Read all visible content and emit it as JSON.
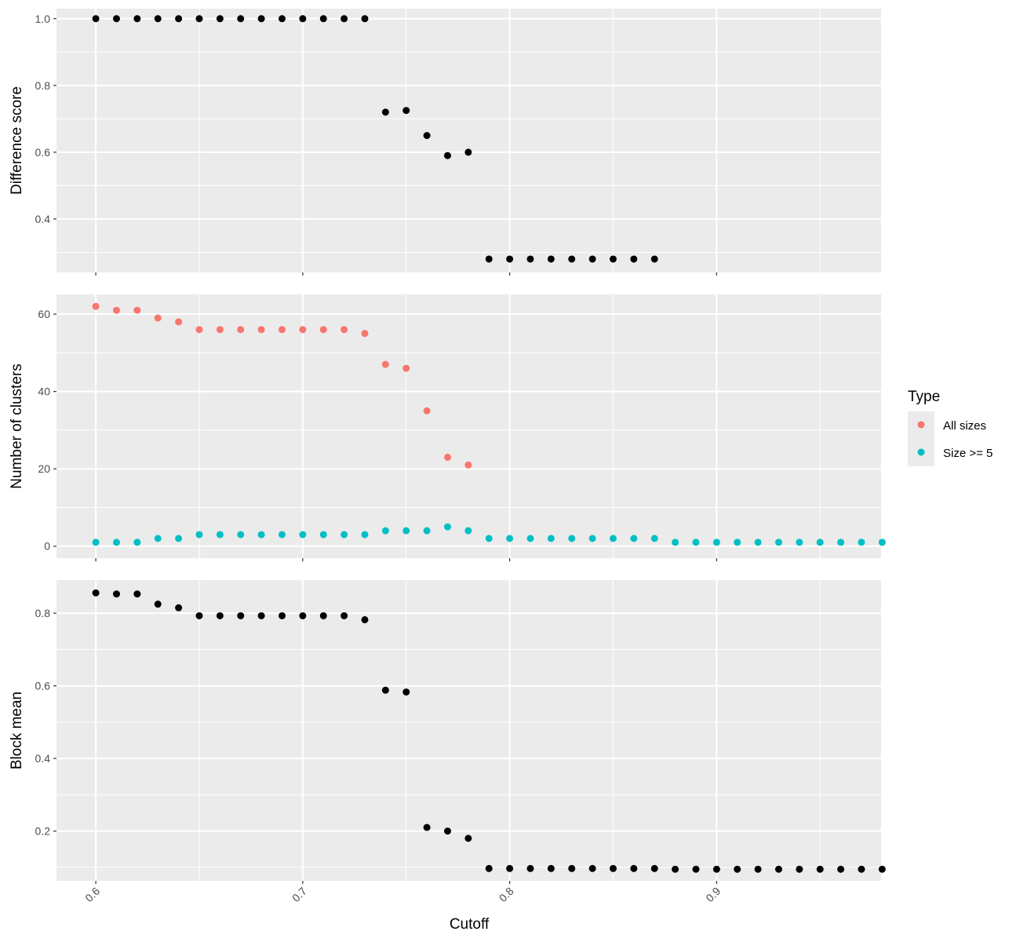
{
  "chart_data": {
    "type": "scatter",
    "xlabel": "Cutoff",
    "x_ticks": [
      0.6,
      0.7,
      0.8,
      0.9
    ],
    "x_tick_labels": [
      "0.6",
      "0.7",
      "0.8",
      "0.9"
    ],
    "xlim": [
      0.581,
      0.9795
    ],
    "grid": true,
    "legend": {
      "title": "Type",
      "position": "right",
      "entries": [
        {
          "label": "All sizes",
          "color": "#F8766D"
        },
        {
          "label": "Size >= 5",
          "color": "#00BFC4"
        }
      ]
    },
    "panels": [
      {
        "ylabel": "Difference score",
        "ylim": [
          0.24,
          1.03
        ],
        "y_ticks": [
          0.4,
          0.6,
          0.8,
          1.0
        ],
        "y_tick_labels": [
          "0.4",
          "0.6",
          "0.8",
          "1.0"
        ],
        "series": [
          {
            "color": "#000000",
            "x": [
              0.6,
              0.61,
              0.62,
              0.63,
              0.64,
              0.65,
              0.66,
              0.67,
              0.68,
              0.69,
              0.7,
              0.71,
              0.72,
              0.73,
              0.74,
              0.75,
              0.76,
              0.77,
              0.78,
              0.79,
              0.8,
              0.81,
              0.82,
              0.83,
              0.84,
              0.85,
              0.86,
              0.87
            ],
            "y": [
              1.0,
              1.0,
              1.0,
              1.0,
              1.0,
              1.0,
              1.0,
              1.0,
              1.0,
              1.0,
              1.0,
              1.0,
              1.0,
              1.0,
              0.72,
              0.725,
              0.65,
              0.59,
              0.6,
              0.28,
              0.28,
              0.28,
              0.28,
              0.28,
              0.28,
              0.28,
              0.28,
              0.28
            ]
          }
        ]
      },
      {
        "ylabel": "Number of clusters",
        "ylim": [
          -3.1,
          65.1
        ],
        "y_ticks": [
          0,
          20,
          40,
          60
        ],
        "y_tick_labels": [
          "0",
          "20",
          "40",
          "60"
        ],
        "series": [
          {
            "name": "All sizes",
            "color": "#F8766D",
            "x": [
              0.6,
              0.61,
              0.62,
              0.63,
              0.64,
              0.65,
              0.66,
              0.67,
              0.68,
              0.69,
              0.7,
              0.71,
              0.72,
              0.73,
              0.74,
              0.75,
              0.76,
              0.77,
              0.78
            ],
            "y": [
              62,
              61,
              61,
              59,
              58,
              56,
              56,
              56,
              56,
              56,
              56,
              56,
              56,
              55,
              47,
              46,
              35,
              23,
              21
            ]
          },
          {
            "name": "Size >= 5",
            "color": "#00BFC4",
            "x": [
              0.6,
              0.61,
              0.62,
              0.63,
              0.64,
              0.65,
              0.66,
              0.67,
              0.68,
              0.69,
              0.7,
              0.71,
              0.72,
              0.73,
              0.74,
              0.75,
              0.76,
              0.77,
              0.78,
              0.79,
              0.8,
              0.81,
              0.82,
              0.83,
              0.84,
              0.85,
              0.86,
              0.87,
              0.88,
              0.89,
              0.9,
              0.91,
              0.92,
              0.93,
              0.94,
              0.95,
              0.96,
              0.97,
              0.98
            ],
            "y": [
              1,
              1,
              1,
              2,
              2,
              3,
              3,
              3,
              3,
              3,
              3,
              3,
              3,
              3,
              4,
              4,
              4,
              5,
              4,
              2,
              2,
              2,
              2,
              2,
              2,
              2,
              2,
              2,
              1,
              1,
              1,
              1,
              1,
              1,
              1,
              1,
              1,
              1,
              1
            ]
          }
        ]
      },
      {
        "ylabel": "Block mean",
        "ylim": [
          0.063,
          0.891
        ],
        "y_ticks": [
          0.2,
          0.4,
          0.6,
          0.8
        ],
        "y_tick_labels": [
          "0.2",
          "0.4",
          "0.6",
          "0.8"
        ],
        "series": [
          {
            "color": "#000000",
            "x": [
              0.6,
              0.61,
              0.62,
              0.63,
              0.64,
              0.65,
              0.66,
              0.67,
              0.68,
              0.69,
              0.7,
              0.71,
              0.72,
              0.73,
              0.74,
              0.75,
              0.76,
              0.77,
              0.78,
              0.79,
              0.8,
              0.81,
              0.82,
              0.83,
              0.84,
              0.85,
              0.86,
              0.87,
              0.88,
              0.89,
              0.9,
              0.91,
              0.92,
              0.93,
              0.94,
              0.95,
              0.96,
              0.97,
              0.98
            ],
            "y": [
              0.856,
              0.853,
              0.853,
              0.825,
              0.815,
              0.793,
              0.793,
              0.793,
              0.793,
              0.793,
              0.793,
              0.793,
              0.793,
              0.782,
              0.588,
              0.583,
              0.21,
              0.2,
              0.18,
              0.097,
              0.097,
              0.097,
              0.097,
              0.097,
              0.097,
              0.097,
              0.097,
              0.097,
              0.095,
              0.095,
              0.095,
              0.095,
              0.095,
              0.095,
              0.095,
              0.095,
              0.095,
              0.095,
              0.095
            ]
          }
        ]
      }
    ]
  }
}
